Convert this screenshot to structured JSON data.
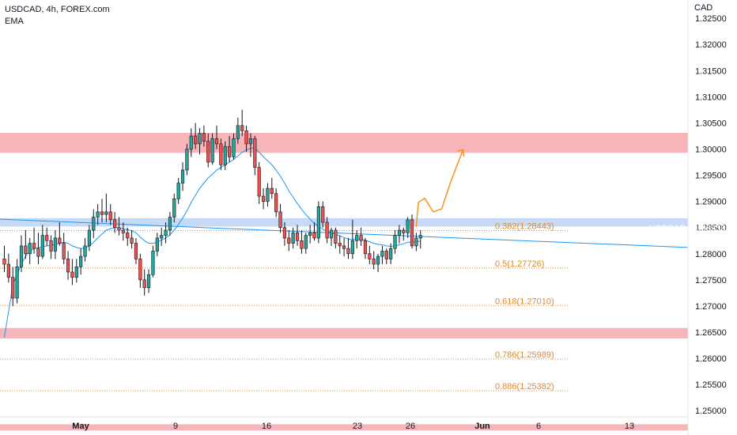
{
  "header": {
    "title": "USDCAD, 4h, FOREX.com",
    "indicator": "EMA"
  },
  "currency": "CAD",
  "price_tag": {
    "symbol": "USDCAD",
    "price": "1.28359",
    "countdown": "02:34:52"
  },
  "colors": {
    "up": "#26a69a",
    "down": "#ef5350",
    "candle_body": "#131722",
    "ema": "#2196f3",
    "resistance_zone": "#f7a8ad",
    "pivot_zone": "#bcd4f5",
    "fib": "#e08a2b",
    "projection": "#f7931e"
  },
  "chart_data": {
    "type": "candlestick",
    "symbol": "USDCAD",
    "timeframe": "4h",
    "broker": "FOREX.com",
    "y_axis": {
      "ticks": [
        "1.32500",
        "1.32000",
        "1.31500",
        "1.31000",
        "1.30500",
        "1.30000",
        "1.29500",
        "1.29000",
        "1.28500",
        "1.28000",
        "1.27500",
        "1.27000",
        "1.26500",
        "1.26000",
        "1.25500",
        "1.25000"
      ],
      "range": [
        1.2455,
        1.3285
      ]
    },
    "x_axis": {
      "ticks": [
        "May",
        "9",
        "16",
        "23",
        "26",
        "Jun",
        "6",
        "13"
      ]
    },
    "last_price": 1.28359,
    "zones": [
      {
        "name": "resistance",
        "from": 1.2993,
        "to": 1.3031
      },
      {
        "name": "support",
        "from": 1.2638,
        "to": 1.2658
      },
      {
        "name": "support-low",
        "from": 1.2462,
        "to": 1.2474
      },
      {
        "name": "pivot",
        "from": 1.2852,
        "to": 1.2868
      }
    ],
    "fibonacci": [
      {
        "label": "0.382(1.28443)",
        "value": 1.28443
      },
      {
        "label": "0.5(1.27726)",
        "value": 1.27726
      },
      {
        "label": "0.618(1.27010)",
        "value": 1.2701
      },
      {
        "label": "0.786(1.25989)",
        "value": 1.25989
      },
      {
        "label": "0.886(1.25382)",
        "value": 1.25382
      }
    ],
    "ohlc": [
      [
        1.279,
        1.2815,
        1.2765,
        1.278
      ],
      [
        1.278,
        1.28,
        1.2745,
        1.2755
      ],
      [
        1.2755,
        1.2775,
        1.27,
        1.2715
      ],
      [
        1.2715,
        1.279,
        1.2705,
        1.2775
      ],
      [
        1.2775,
        1.2835,
        1.2765,
        1.2815
      ],
      [
        1.2815,
        1.2845,
        1.279,
        1.28
      ],
      [
        1.28,
        1.283,
        1.278,
        1.282
      ],
      [
        1.282,
        1.285,
        1.28,
        1.281
      ],
      [
        1.281,
        1.284,
        1.278,
        1.2795
      ],
      [
        1.2795,
        1.2855,
        1.279,
        1.2835
      ],
      [
        1.2835,
        1.285,
        1.2815,
        1.2825
      ],
      [
        1.2825,
        1.2835,
        1.279,
        1.2805
      ],
      [
        1.2805,
        1.2845,
        1.279,
        1.283
      ],
      [
        1.283,
        1.286,
        1.2815,
        1.282
      ],
      [
        1.282,
        1.284,
        1.278,
        1.279
      ],
      [
        1.279,
        1.2805,
        1.275,
        1.2765
      ],
      [
        1.2765,
        1.279,
        1.274,
        1.2755
      ],
      [
        1.2755,
        1.279,
        1.2745,
        1.2775
      ],
      [
        1.2775,
        1.281,
        1.276,
        1.2795
      ],
      [
        1.2795,
        1.283,
        1.2785,
        1.2815
      ],
      [
        1.2815,
        1.2855,
        1.2805,
        1.2845
      ],
      [
        1.2845,
        1.2885,
        1.283,
        1.287
      ],
      [
        1.287,
        1.2895,
        1.2855,
        1.288
      ],
      [
        1.288,
        1.2905,
        1.286,
        1.2875
      ],
      [
        1.2875,
        1.2915,
        1.286,
        1.288
      ],
      [
        1.288,
        1.2895,
        1.2855,
        1.2865
      ],
      [
        1.2865,
        1.288,
        1.284,
        1.285
      ],
      [
        1.285,
        1.287,
        1.2835,
        1.2845
      ],
      [
        1.2845,
        1.286,
        1.2825,
        1.284
      ],
      [
        1.284,
        1.285,
        1.2815,
        1.283
      ],
      [
        1.283,
        1.2845,
        1.281,
        1.282
      ],
      [
        1.282,
        1.283,
        1.278,
        1.279
      ],
      [
        1.279,
        1.28,
        1.2735,
        1.275
      ],
      [
        1.275,
        1.277,
        1.272,
        1.2735
      ],
      [
        1.2735,
        1.277,
        1.2725,
        1.276
      ],
      [
        1.276,
        1.2815,
        1.2755,
        1.2805
      ],
      [
        1.2805,
        1.284,
        1.2795,
        1.283
      ],
      [
        1.283,
        1.285,
        1.2815,
        1.2835
      ],
      [
        1.2835,
        1.286,
        1.282,
        1.2845
      ],
      [
        1.2845,
        1.288,
        1.2835,
        1.287
      ],
      [
        1.287,
        1.2915,
        1.286,
        1.2905
      ],
      [
        1.2905,
        1.2945,
        1.2895,
        1.2935
      ],
      [
        1.2935,
        1.2975,
        1.292,
        1.296
      ],
      [
        1.296,
        1.301,
        1.295,
        1.3
      ],
      [
        1.3,
        1.304,
        1.2985,
        1.3025
      ],
      [
        1.3025,
        1.305,
        1.3,
        1.301
      ],
      [
        1.301,
        1.304,
        1.299,
        1.303
      ],
      [
        1.303,
        1.3045,
        1.3005,
        1.3015
      ],
      [
        1.3015,
        1.303,
        1.2965,
        1.2975
      ],
      [
        1.2975,
        1.303,
        1.297,
        1.302
      ],
      [
        1.302,
        1.3045,
        1.3,
        1.301
      ],
      [
        1.301,
        1.302,
        1.296,
        1.297
      ],
      [
        1.297,
        1.3015,
        1.296,
        1.3005
      ],
      [
        1.3005,
        1.3025,
        1.2975,
        1.2985
      ],
      [
        1.2985,
        1.303,
        1.298,
        1.302
      ],
      [
        1.302,
        1.306,
        1.301,
        1.3045
      ],
      [
        1.3045,
        1.3075,
        1.3025,
        1.3035
      ],
      [
        1.3035,
        1.3045,
        1.2995,
        1.301
      ],
      [
        1.301,
        1.303,
        1.2985,
        1.302
      ],
      [
        1.302,
        1.3025,
        1.295,
        1.2965
      ],
      [
        1.2965,
        1.2975,
        1.2895,
        1.291
      ],
      [
        1.291,
        1.2925,
        1.2885,
        1.29
      ],
      [
        1.29,
        1.2935,
        1.289,
        1.2925
      ],
      [
        1.2925,
        1.2945,
        1.2905,
        1.2915
      ],
      [
        1.2915,
        1.2925,
        1.287,
        1.288
      ],
      [
        1.288,
        1.2895,
        1.284,
        1.285
      ],
      [
        1.285,
        1.286,
        1.2815,
        1.283
      ],
      [
        1.283,
        1.2845,
        1.2805,
        1.282
      ],
      [
        1.282,
        1.285,
        1.281,
        1.284
      ],
      [
        1.284,
        1.2855,
        1.2815,
        1.2825
      ],
      [
        1.2825,
        1.2845,
        1.28,
        1.281
      ],
      [
        1.281,
        1.284,
        1.28,
        1.2835
      ],
      [
        1.2835,
        1.2855,
        1.282,
        1.284
      ],
      [
        1.284,
        1.286,
        1.2825,
        1.283
      ],
      [
        1.283,
        1.29,
        1.282,
        1.289
      ],
      [
        1.289,
        1.29,
        1.285,
        1.286
      ],
      [
        1.286,
        1.287,
        1.282,
        1.283
      ],
      [
        1.283,
        1.285,
        1.2815,
        1.2845
      ],
      [
        1.2845,
        1.285,
        1.281,
        1.282
      ],
      [
        1.282,
        1.2835,
        1.28,
        1.2815
      ],
      [
        1.2815,
        1.283,
        1.2795,
        1.281
      ],
      [
        1.281,
        1.283,
        1.279,
        1.28
      ],
      [
        1.28,
        1.2865,
        1.279,
        1.2825
      ],
      [
        1.2825,
        1.2845,
        1.281,
        1.2835
      ],
      [
        1.2835,
        1.285,
        1.2815,
        1.2825
      ],
      [
        1.2825,
        1.283,
        1.279,
        1.28
      ],
      [
        1.28,
        1.2815,
        1.278,
        1.279
      ],
      [
        1.279,
        1.2805,
        1.277,
        1.278
      ],
      [
        1.278,
        1.28,
        1.2765,
        1.2795
      ],
      [
        1.2795,
        1.2815,
        1.278,
        1.2805
      ],
      [
        1.2805,
        1.281,
        1.278,
        1.279
      ],
      [
        1.279,
        1.282,
        1.278,
        1.281
      ],
      [
        1.281,
        1.2845,
        1.28,
        1.2835
      ],
      [
        1.2835,
        1.2855,
        1.282,
        1.2845
      ],
      [
        1.2845,
        1.285,
        1.2825,
        1.284
      ],
      [
        1.284,
        1.287,
        1.283,
        1.2865
      ],
      [
        1.2865,
        1.2875,
        1.281,
        1.2815
      ],
      [
        1.2815,
        1.284,
        1.2805,
        1.283
      ],
      [
        1.283,
        1.2845,
        1.281,
        1.2835
      ]
    ],
    "ema_values": [
      1.264,
      1.269,
      1.274,
      1.276,
      1.278,
      1.2795,
      1.2805,
      1.281,
      1.2812,
      1.2813,
      1.2815,
      1.2816,
      1.2818,
      1.282,
      1.2822,
      1.282,
      1.2815,
      1.2812,
      1.281,
      1.2811,
      1.2815,
      1.2822,
      1.283,
      1.2838,
      1.2845,
      1.2848,
      1.285,
      1.285,
      1.2848,
      1.2846,
      1.2844,
      1.284,
      1.2832,
      1.2825,
      1.282,
      1.282,
      1.2822,
      1.2826,
      1.283,
      1.2836,
      1.2845,
      1.2856,
      1.2868,
      1.2882,
      1.2898,
      1.2912,
      1.2925,
      1.2935,
      1.2945,
      1.2952,
      1.296,
      1.2965,
      1.297,
      1.2975,
      1.298,
      1.2987,
      1.2994,
      1.2998,
      1.3002,
      1.3002,
      1.2994,
      1.2985,
      1.2978,
      1.297,
      1.296,
      1.2948,
      1.2935,
      1.292,
      1.2908,
      1.2896,
      1.2885,
      1.2875,
      1.2866,
      1.2858,
      1.2852,
      1.2847,
      1.2843,
      1.284,
      1.2837,
      1.2834,
      1.2831,
      1.2828,
      1.2827,
      1.2828,
      1.2828,
      1.2826,
      1.2823,
      1.282,
      1.2818,
      1.2817,
      1.2815,
      1.2814,
      1.2815,
      1.2817,
      1.2819,
      1.2822,
      1.2822,
      1.2823,
      1.2824
    ],
    "trendline": {
      "from_index": 0,
      "from_value": 1.2866,
      "to_index": 144,
      "to_value": 1.2812
    },
    "projection": [
      [
        97,
        1.2852
      ],
      [
        97.5,
        1.2898
      ],
      [
        99,
        1.2906
      ],
      [
        101,
        1.288
      ],
      [
        103,
        1.2886
      ],
      [
        105,
        1.2935
      ],
      [
        108,
        1.2999
      ],
      [
        109,
        1.299
      ]
    ]
  }
}
